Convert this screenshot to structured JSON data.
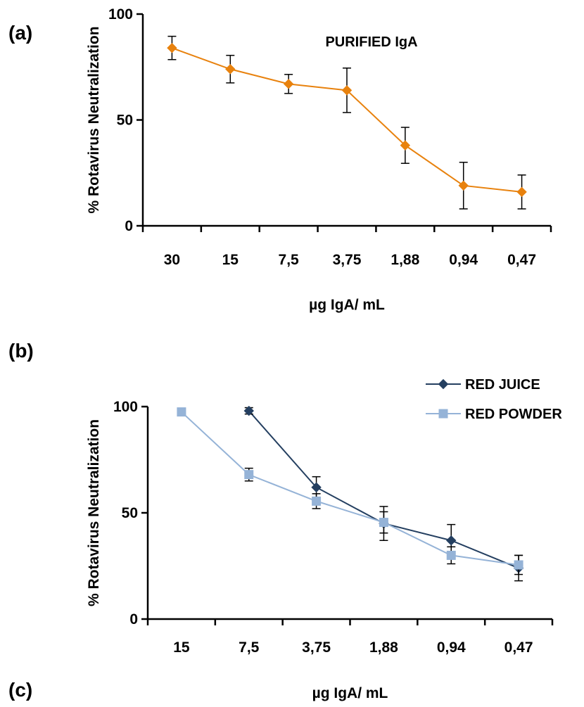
{
  "panel_labels": [
    "(a)",
    "(b)",
    "(c)"
  ],
  "chart_data": [
    {
      "type": "line",
      "panel": "(a)",
      "title": "",
      "annotation": "PURIFIED IgA",
      "xlabel": "µg IgA/ mL",
      "ylabel": "% Rotavirus Neutralization",
      "categories": [
        "30",
        "15",
        "7,5",
        "3,75",
        "1,88",
        "0,94",
        "0,47"
      ],
      "ylim": [
        0,
        100
      ],
      "yticks": [
        "0",
        "50",
        "100"
      ],
      "grid": false,
      "series": [
        {
          "values": [
            84,
            74,
            67,
            64,
            38,
            19,
            16
          ],
          "errors": [
            5.5,
            6.5,
            4.5,
            10.5,
            8.5,
            11,
            8
          ],
          "color": "#E8820E",
          "marker": "diamond"
        }
      ]
    },
    {
      "type": "line",
      "panel": "(b)",
      "title": "",
      "xlabel": "µg IgA/ mL",
      "ylabel": "% Rotavirus Neutralization",
      "categories": [
        "15",
        "7,5",
        "3,75",
        "1,88",
        "0,94",
        "0,47"
      ],
      "ylim": [
        0,
        100
      ],
      "yticks": [
        "0",
        "50",
        "100"
      ],
      "grid": false,
      "legend_position": "top-right",
      "series": [
        {
          "name": "RED JUICE",
          "values": [
            null,
            98,
            62,
            45,
            37,
            24
          ],
          "errors": [
            null,
            1.5,
            5,
            8,
            7.5,
            6
          ],
          "color": "#243F60",
          "marker": "diamond"
        },
        {
          "name": "RED POWDER",
          "values": [
            97.5,
            68,
            55.5,
            45.5,
            30,
            25.5
          ],
          "errors": [
            0,
            3,
            3.5,
            5,
            4,
            4.5
          ],
          "color": "#95B3D7",
          "marker": "square"
        }
      ]
    }
  ]
}
